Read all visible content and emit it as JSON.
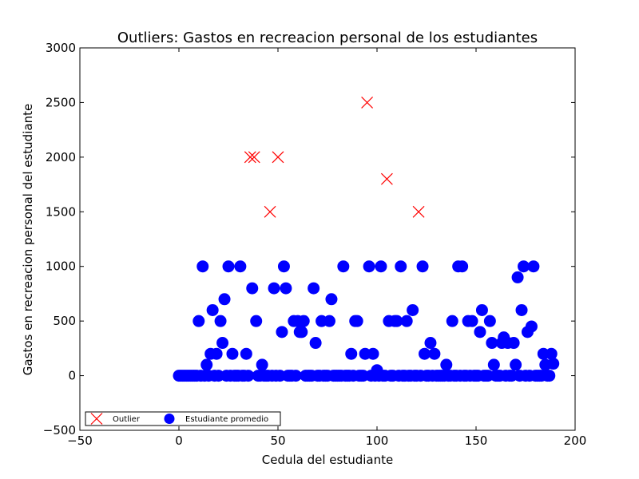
{
  "chart_data": {
    "type": "scatter",
    "title": "Outliers: Gastos en recreacion personal de los estudiantes",
    "xlabel": "Cedula del estudiante",
    "ylabel": "Gastos en recreacion personal del estudiante",
    "xlim": [
      -50,
      200
    ],
    "ylim": [
      -500,
      3000
    ],
    "xticks": [
      -50,
      0,
      50,
      100,
      150,
      200
    ],
    "yticks": [
      -500,
      0,
      500,
      1000,
      1500,
      2000,
      2500,
      3000
    ],
    "legend": {
      "placement": "lower-left"
    },
    "series": [
      {
        "name": "Outlier",
        "marker": "x",
        "color": "#ff0000",
        "points": [
          [
            36,
            2000
          ],
          [
            38,
            2000
          ],
          [
            46,
            1500
          ],
          [
            50,
            2000
          ],
          [
            95,
            2500
          ],
          [
            105,
            1800
          ],
          [
            121,
            1500
          ]
        ]
      },
      {
        "name": "Estudiante promedio",
        "marker": "circle",
        "color": "#0000ff",
        "points": [
          [
            0,
            0
          ],
          [
            1,
            0
          ],
          [
            2,
            0
          ],
          [
            3,
            0
          ],
          [
            4,
            0
          ],
          [
            5,
            0
          ],
          [
            6,
            0
          ],
          [
            7,
            0
          ],
          [
            8,
            0
          ],
          [
            9,
            0
          ],
          [
            10,
            500
          ],
          [
            11,
            0
          ],
          [
            12,
            1000
          ],
          [
            13,
            0
          ],
          [
            14,
            100
          ],
          [
            15,
            0
          ],
          [
            16,
            200
          ],
          [
            17,
            600
          ],
          [
            18,
            0
          ],
          [
            19,
            200
          ],
          [
            20,
            0
          ],
          [
            21,
            500
          ],
          [
            22,
            300
          ],
          [
            23,
            700
          ],
          [
            24,
            0
          ],
          [
            25,
            1000
          ],
          [
            26,
            0
          ],
          [
            27,
            200
          ],
          [
            28,
            0
          ],
          [
            29,
            0
          ],
          [
            30,
            0
          ],
          [
            31,
            1000
          ],
          [
            32,
            0
          ],
          [
            33,
            0
          ],
          [
            34,
            200
          ],
          [
            35,
            0
          ],
          [
            37,
            800
          ],
          [
            39,
            500
          ],
          [
            40,
            0
          ],
          [
            41,
            0
          ],
          [
            42,
            100
          ],
          [
            43,
            0
          ],
          [
            44,
            0
          ],
          [
            45,
            0
          ],
          [
            47,
            0
          ],
          [
            48,
            800
          ],
          [
            49,
            0
          ],
          [
            51,
            0
          ],
          [
            52,
            400
          ],
          [
            53,
            1000
          ],
          [
            54,
            800
          ],
          [
            55,
            0
          ],
          [
            56,
            0
          ],
          [
            57,
            0
          ],
          [
            58,
            500
          ],
          [
            59,
            0
          ],
          [
            60,
            500
          ],
          [
            61,
            400
          ],
          [
            62,
            400
          ],
          [
            63,
            500
          ],
          [
            64,
            0
          ],
          [
            65,
            0
          ],
          [
            66,
            0
          ],
          [
            67,
            0
          ],
          [
            68,
            800
          ],
          [
            69,
            300
          ],
          [
            70,
            0
          ],
          [
            71,
            0
          ],
          [
            72,
            500
          ],
          [
            73,
            0
          ],
          [
            74,
            0
          ],
          [
            75,
            0
          ],
          [
            76,
            500
          ],
          [
            77,
            700
          ],
          [
            78,
            0
          ],
          [
            79,
            0
          ],
          [
            80,
            0
          ],
          [
            81,
            0
          ],
          [
            82,
            0
          ],
          [
            83,
            1000
          ],
          [
            84,
            0
          ],
          [
            85,
            0
          ],
          [
            86,
            0
          ],
          [
            87,
            200
          ],
          [
            88,
            0
          ],
          [
            89,
            500
          ],
          [
            90,
            500
          ],
          [
            91,
            0
          ],
          [
            92,
            0
          ],
          [
            93,
            0
          ],
          [
            94,
            200
          ],
          [
            96,
            1000
          ],
          [
            97,
            0
          ],
          [
            98,
            200
          ],
          [
            99,
            0
          ],
          [
            100,
            50
          ],
          [
            101,
            0
          ],
          [
            102,
            1000
          ],
          [
            103,
            0
          ],
          [
            104,
            0
          ],
          [
            106,
            500
          ],
          [
            107,
            0
          ],
          [
            108,
            0
          ],
          [
            109,
            500
          ],
          [
            110,
            500
          ],
          [
            111,
            0
          ],
          [
            112,
            1000
          ],
          [
            113,
            0
          ],
          [
            114,
            0
          ],
          [
            115,
            500
          ],
          [
            116,
            0
          ],
          [
            117,
            0
          ],
          [
            118,
            600
          ],
          [
            119,
            0
          ],
          [
            120,
            0
          ],
          [
            122,
            0
          ],
          [
            123,
            1000
          ],
          [
            124,
            200
          ],
          [
            125,
            0
          ],
          [
            126,
            0
          ],
          [
            127,
            300
          ],
          [
            128,
            0
          ],
          [
            129,
            200
          ],
          [
            130,
            0
          ],
          [
            131,
            0
          ],
          [
            132,
            0
          ],
          [
            133,
            0
          ],
          [
            134,
            0
          ],
          [
            135,
            100
          ],
          [
            136,
            0
          ],
          [
            137,
            0
          ],
          [
            138,
            500
          ],
          [
            139,
            0
          ],
          [
            140,
            0
          ],
          [
            141,
            1000
          ],
          [
            142,
            0
          ],
          [
            143,
            1000
          ],
          [
            144,
            0
          ],
          [
            145,
            0
          ],
          [
            146,
            500
          ],
          [
            147,
            0
          ],
          [
            148,
            500
          ],
          [
            149,
            0
          ],
          [
            150,
            0
          ],
          [
            151,
            0
          ],
          [
            152,
            400
          ],
          [
            153,
            600
          ],
          [
            154,
            0
          ],
          [
            155,
            0
          ],
          [
            156,
            0
          ],
          [
            157,
            500
          ],
          [
            158,
            300
          ],
          [
            159,
            100
          ],
          [
            160,
            0
          ],
          [
            161,
            0
          ],
          [
            162,
            0
          ],
          [
            163,
            300
          ],
          [
            164,
            350
          ],
          [
            165,
            0
          ],
          [
            166,
            300
          ],
          [
            167,
            0
          ],
          [
            168,
            0
          ],
          [
            169,
            300
          ],
          [
            170,
            100
          ],
          [
            171,
            900
          ],
          [
            172,
            0
          ],
          [
            173,
            600
          ],
          [
            174,
            1000
          ],
          [
            175,
            0
          ],
          [
            176,
            400
          ],
          [
            177,
            0
          ],
          [
            178,
            450
          ],
          [
            179,
            1000
          ],
          [
            180,
            0
          ],
          [
            181,
            0
          ],
          [
            182,
            0
          ],
          [
            183,
            0
          ],
          [
            184,
            200
          ],
          [
            185,
            100
          ],
          [
            186,
            0
          ],
          [
            187,
            0
          ],
          [
            188,
            200
          ],
          [
            189,
            110
          ]
        ]
      }
    ]
  }
}
